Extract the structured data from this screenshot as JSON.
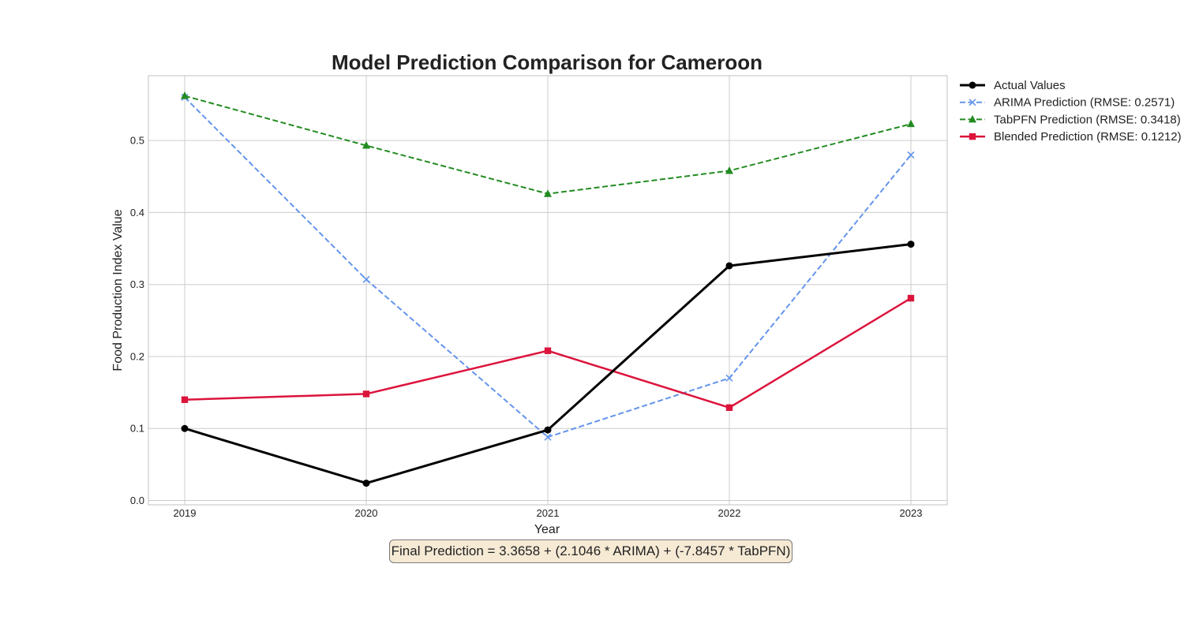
{
  "chart_data": {
    "type": "line",
    "title": "Model Prediction Comparison for Cameroon",
    "xlabel": "Year",
    "ylabel": "Food Production Index Value",
    "x": [
      "2019",
      "2020",
      "2021",
      "2022",
      "2023"
    ],
    "y_ticks": [
      "0.0",
      "0.1",
      "0.2",
      "0.3",
      "0.4",
      "0.5"
    ],
    "ylim": [
      -0.006,
      0.59
    ],
    "grid": true,
    "legend_position": "outside-right-top",
    "series": [
      {
        "name": "Actual Values",
        "values": [
          0.1,
          0.024,
          0.098,
          0.326,
          0.356
        ],
        "color": "#000000",
        "marker": "circle",
        "dash": "solid"
      },
      {
        "name": "ARIMA Prediction (RMSE: 0.2571)",
        "values": [
          0.56,
          0.307,
          0.088,
          0.17,
          0.48
        ],
        "color": "#6495ed",
        "marker": "x",
        "dash": "dashed"
      },
      {
        "name": "TabPFN Prediction (RMSE: 0.3418)",
        "values": [
          0.562,
          0.493,
          0.426,
          0.458,
          0.523
        ],
        "color": "#228b22",
        "marker": "triangle",
        "dash": "dashed"
      },
      {
        "name": "Blended Prediction (RMSE: 0.1212)",
        "values": [
          0.14,
          0.148,
          0.208,
          0.129,
          0.281
        ],
        "color": "#dc143c",
        "marker": "square",
        "dash": "solid"
      }
    ],
    "annotation": "Final Prediction = 3.3658 + (2.1046 * ARIMA) + (-7.8457 * TabPFN)"
  }
}
